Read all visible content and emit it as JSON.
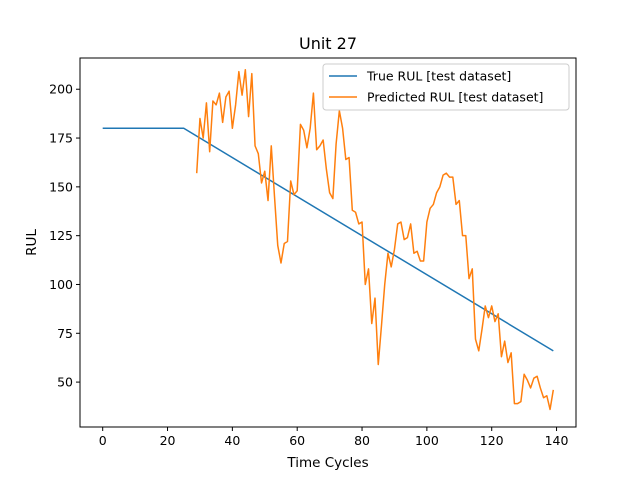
{
  "chart_data": {
    "type": "line",
    "title": "Unit 27",
    "xlabel": "Time Cycles",
    "ylabel": "RUL",
    "xlim": [
      -7,
      146
    ],
    "ylim": [
      27,
      216
    ],
    "x_ticks": [
      0,
      20,
      40,
      60,
      80,
      100,
      120,
      140
    ],
    "y_ticks": [
      50,
      75,
      100,
      125,
      150,
      175,
      200
    ],
    "grid": false,
    "legend_position": "top-right",
    "series": [
      {
        "name": "True RUL [test dataset]",
        "color": "#1f77b4",
        "x": [
          0,
          25,
          139
        ],
        "y": [
          180,
          180,
          66
        ]
      },
      {
        "name": "Predicted RUL [test dataset]",
        "color": "#ff7f0e",
        "x": [
          29,
          30,
          31,
          32,
          33,
          34,
          35,
          36,
          37,
          38,
          39,
          40,
          41,
          42,
          43,
          44,
          45,
          46,
          47,
          48,
          49,
          50,
          51,
          52,
          53,
          54,
          55,
          56,
          57,
          58,
          59,
          60,
          61,
          62,
          63,
          64,
          65,
          66,
          67,
          68,
          69,
          70,
          71,
          72,
          73,
          74,
          75,
          76,
          77,
          78,
          79,
          80,
          81,
          82,
          83,
          84,
          85,
          86,
          87,
          88,
          89,
          90,
          91,
          92,
          93,
          94,
          95,
          96,
          97,
          98,
          99,
          100,
          101,
          102,
          103,
          104,
          105,
          106,
          107,
          108,
          109,
          110,
          111,
          112,
          113,
          114,
          115,
          116,
          117,
          118,
          119,
          120,
          121,
          122,
          123,
          124,
          125,
          126,
          127,
          128,
          129,
          130,
          131,
          132,
          133,
          134,
          135,
          136,
          137,
          138,
          139
        ],
        "y": [
          157,
          185,
          175,
          193,
          168,
          194,
          192,
          198,
          183,
          196,
          199,
          180,
          192,
          209,
          197,
          210,
          186,
          208,
          171,
          167,
          152,
          158,
          143,
          171,
          145,
          120,
          111,
          121,
          122,
          153,
          146,
          148,
          182,
          179,
          170,
          180,
          198,
          169,
          171,
          174,
          159,
          147,
          144,
          172,
          189,
          180,
          164,
          165,
          138,
          137,
          131,
          132,
          100,
          108,
          80,
          93,
          59,
          79,
          100,
          116,
          109,
          118,
          131,
          132,
          123,
          124,
          131,
          116,
          117,
          112,
          112,
          132,
          139,
          141,
          147,
          150,
          156,
          157,
          155,
          155,
          141,
          143,
          125,
          125,
          103,
          108,
          72,
          66,
          77,
          89,
          83,
          89,
          81,
          85,
          63,
          71,
          60,
          65,
          39,
          39,
          40,
          54,
          51,
          47,
          52,
          53,
          47,
          42,
          43,
          36,
          46
        ]
      }
    ]
  }
}
